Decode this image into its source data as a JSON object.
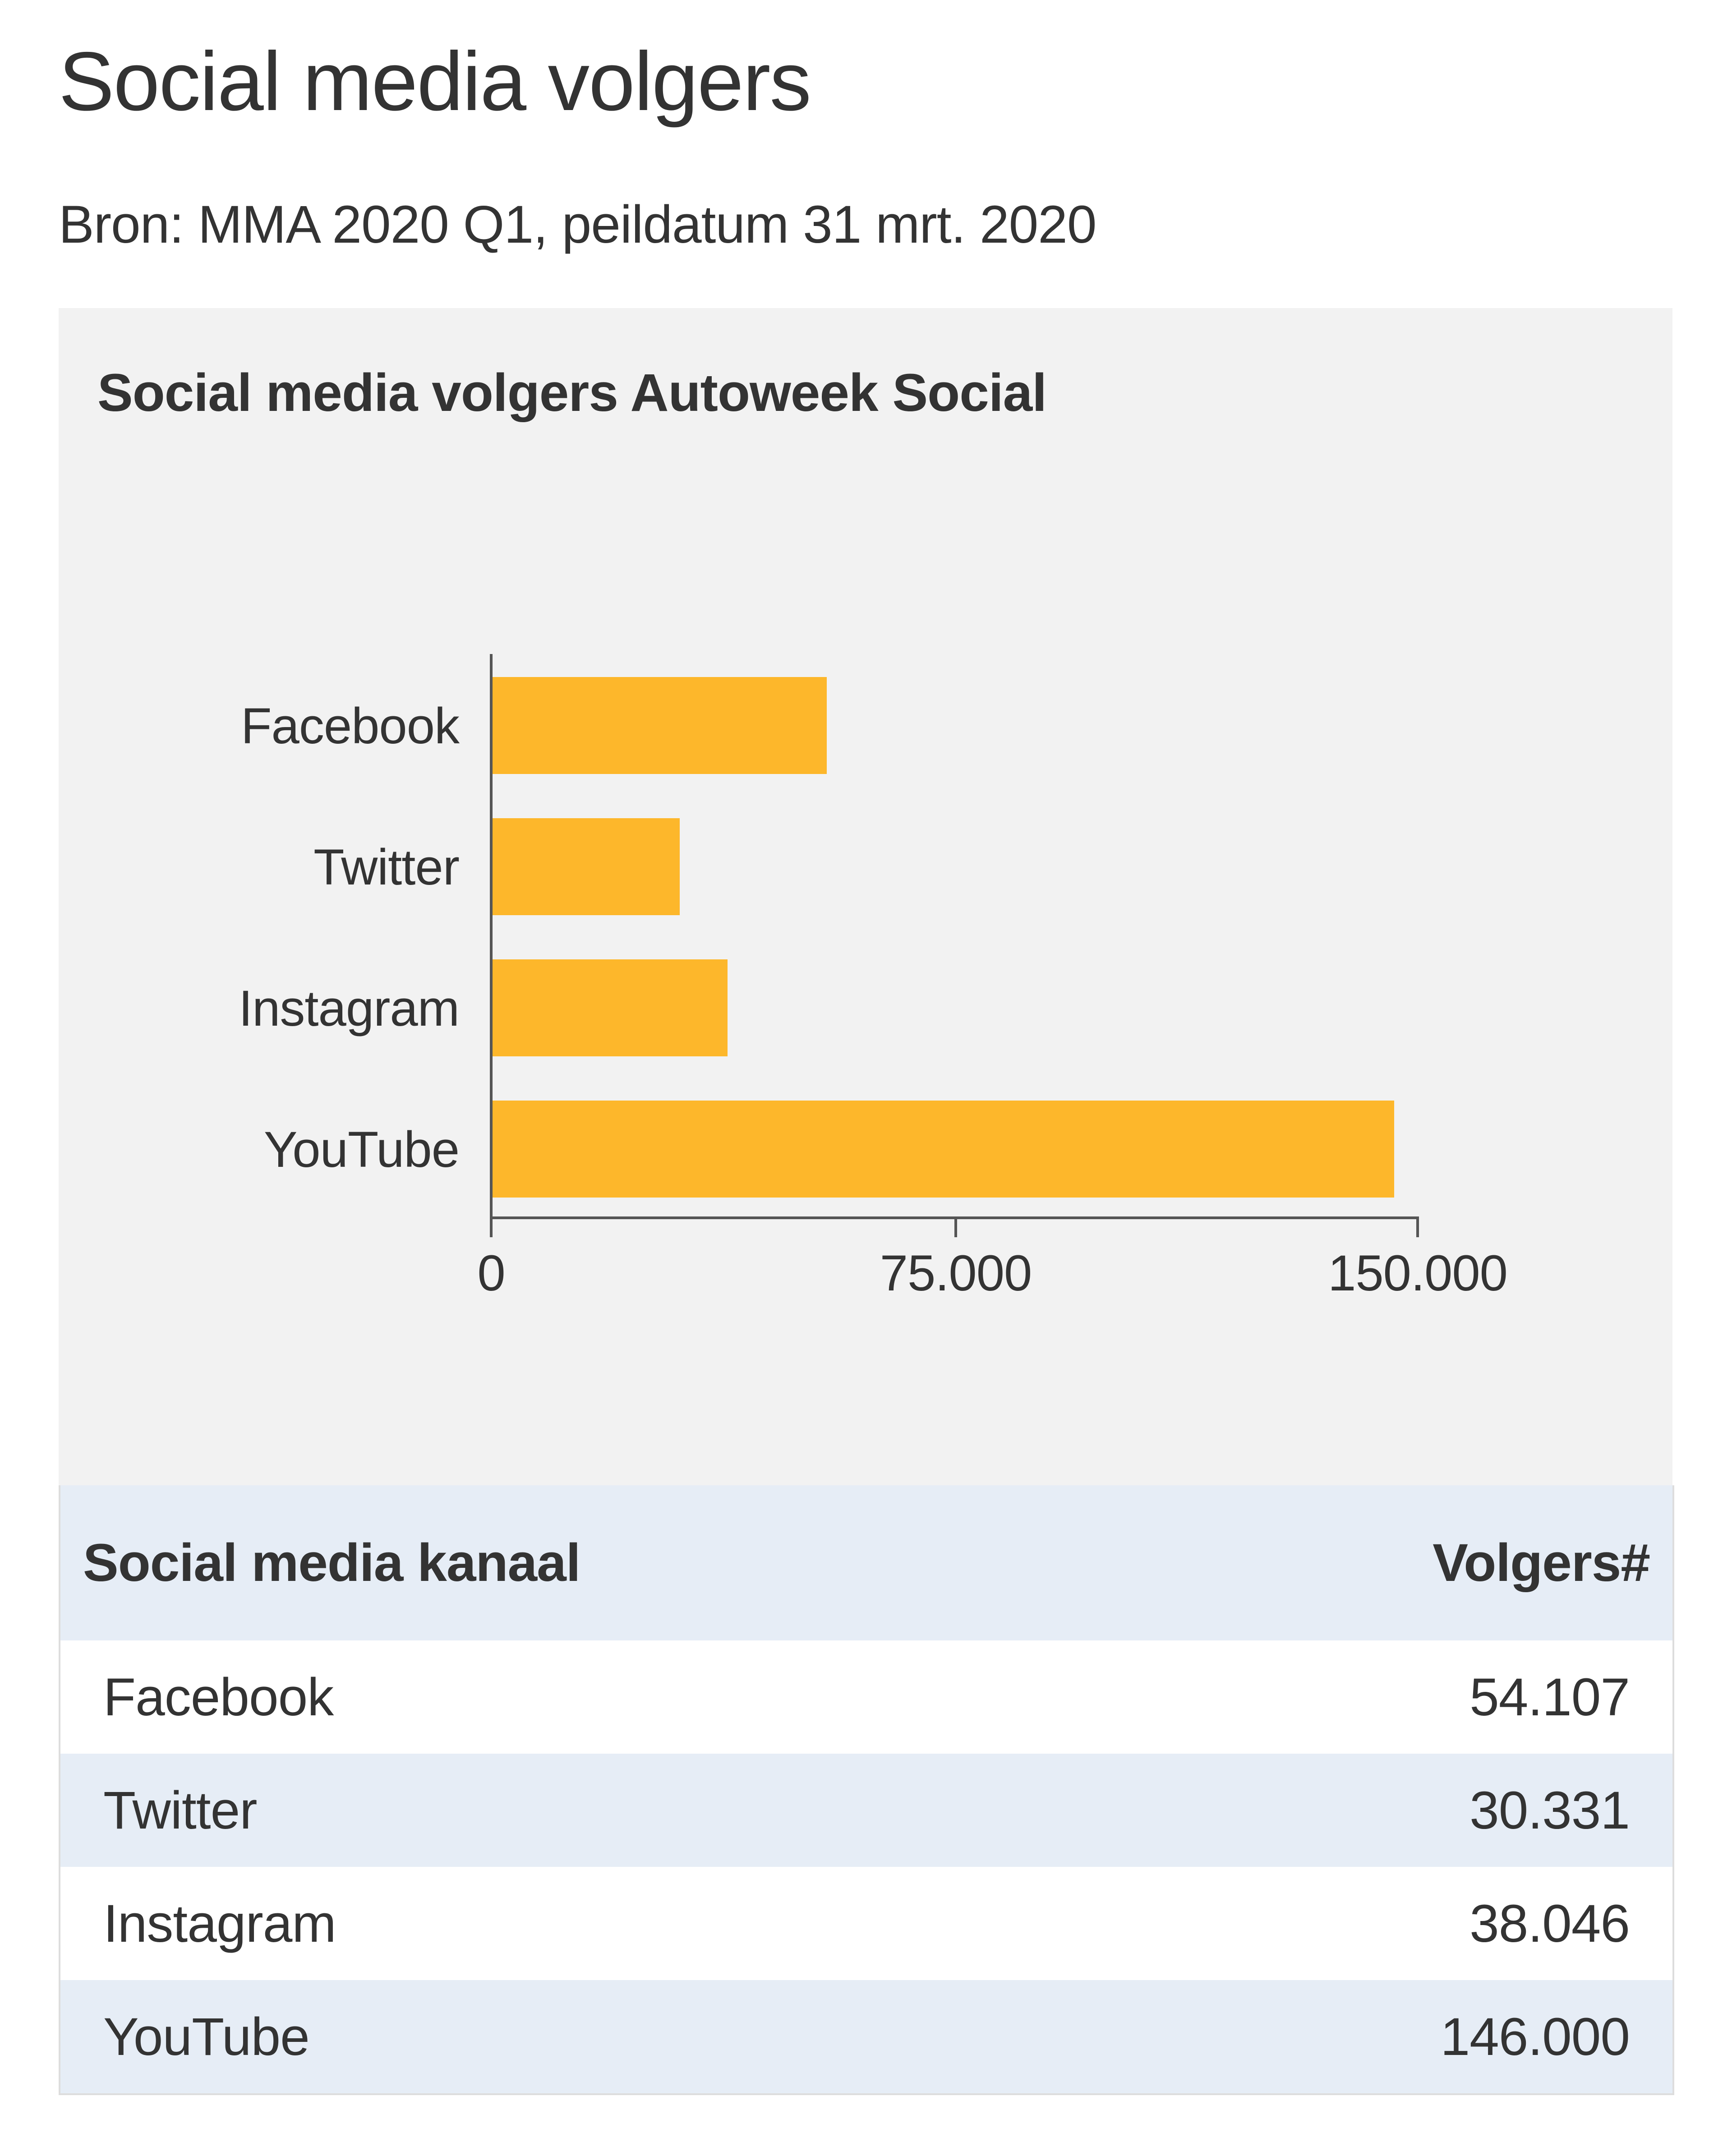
{
  "page": {
    "title": "Social media volgers",
    "source": "Bron: MMA 2020 Q1, peildatum 31 mrt. 2020"
  },
  "chart": {
    "title": "Social media volgers Autoweek Social",
    "bar_color": "#fdb72b",
    "categories": [
      "Facebook",
      "Twitter",
      "Instagram",
      "YouTube"
    ],
    "ticks": [
      "0",
      "75.000",
      "150.000"
    ]
  },
  "table": {
    "headers": [
      "Social media kanaal",
      "Volgers#"
    ],
    "rows": [
      [
        "Facebook",
        "54.107"
      ],
      [
        "Twitter",
        "30.331"
      ],
      [
        "Instagram",
        "38.046"
      ],
      [
        "YouTube",
        "146.000"
      ]
    ]
  },
  "chart_data": {
    "type": "bar",
    "orientation": "horizontal",
    "title": "Social media volgers Autoweek Social",
    "subtitle": "Bron: MMA 2020 Q1, peildatum 31 mrt. 2020",
    "categories": [
      "Facebook",
      "Twitter",
      "Instagram",
      "YouTube"
    ],
    "values": [
      54107,
      30331,
      38046,
      146000
    ],
    "xlabel": "",
    "ylabel": "",
    "xlim": [
      0,
      150000
    ],
    "xticks": [
      0,
      75000,
      150000
    ],
    "xtick_labels": [
      "0",
      "75.000",
      "150.000"
    ],
    "grid": false,
    "legend": null,
    "colors": [
      "#fdb72b"
    ]
  }
}
